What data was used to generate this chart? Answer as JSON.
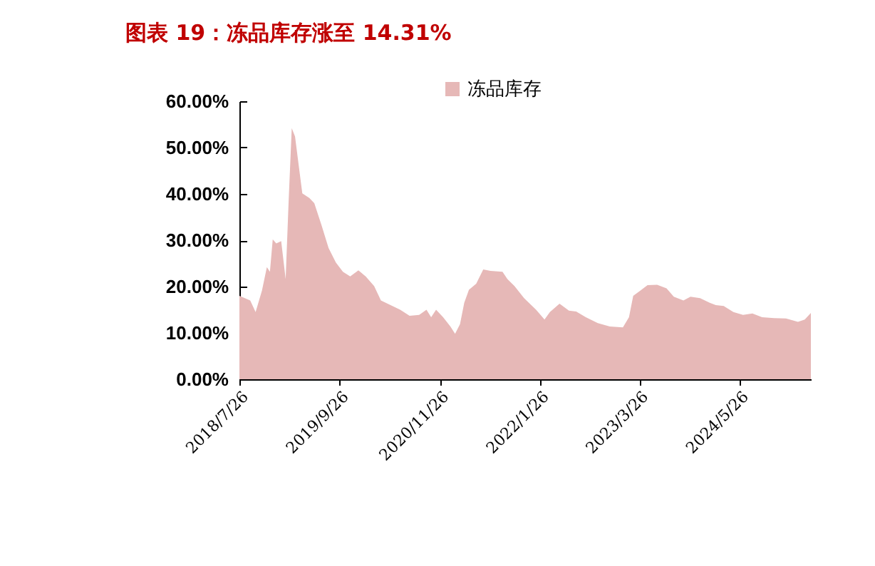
{
  "chart_data": {
    "type": "area",
    "title": "图表 19：冻品库存涨至 14.31%",
    "legend": "top",
    "x": [
      "2018-07-26",
      "2018-09-10",
      "2018-10-03",
      "2018-10-30",
      "2018-11-20",
      "2018-12-03",
      "2018-12-15",
      "2018-12-30",
      "2019-01-20",
      "2019-02-08",
      "2019-02-20",
      "2019-03-06",
      "2019-03-20",
      "2019-04-03",
      "2019-04-20",
      "2019-05-20",
      "2019-06-10",
      "2019-07-10",
      "2019-08-10",
      "2019-09-10",
      "2019-10-10",
      "2019-11-10",
      "2019-12-15",
      "2020-01-15",
      "2020-02-20",
      "2020-03-20",
      "2020-04-30",
      "2020-06-10",
      "2020-07-20",
      "2020-08-30",
      "2020-09-30",
      "2020-10-20",
      "2020-11-10",
      "2020-12-10",
      "2021-01-10",
      "2021-01-30",
      "2021-02-20",
      "2021-03-10",
      "2021-03-30",
      "2021-04-30",
      "2021-05-30",
      "2021-06-30",
      "2021-08-20",
      "2021-09-10",
      "2021-10-10",
      "2021-11-20",
      "2022-01-10",
      "2022-02-15",
      "2022-03-10",
      "2022-04-20",
      "2022-05-30",
      "2022-06-30",
      "2022-08-10",
      "2022-09-30",
      "2022-11-20",
      "2023-01-15",
      "2023-02-10",
      "2023-02-28",
      "2023-03-30",
      "2023-04-30",
      "2023-06-10",
      "2023-07-20",
      "2023-08-20",
      "2023-09-30",
      "2023-10-30",
      "2023-12-10",
      "2024-01-20",
      "2024-02-15",
      "2024-03-20",
      "2024-04-30",
      "2024-06-10",
      "2024-07-20",
      "2024-08-30",
      "2024-10-20",
      "2024-12-10",
      "2025-01-30",
      "2025-02-28",
      "2025-03-26"
    ],
    "series": [
      {
        "name": "冻品库存",
        "color": "#e6b8b7",
        "values": [
          18.0,
          17.0,
          14.5,
          19.1,
          24.2,
          23.2,
          30.2,
          29.3,
          29.8,
          21.6,
          37.5,
          54.2,
          52.4,
          46.8,
          40.1,
          39.1,
          38.0,
          33.4,
          28.3,
          25.2,
          23.2,
          22.2,
          23.5,
          22.2,
          20.1,
          17.0,
          16.0,
          15.0,
          13.7,
          13.9,
          15.0,
          13.4,
          15.0,
          13.4,
          11.4,
          9.8,
          11.9,
          16.5,
          19.3,
          20.6,
          23.7,
          23.4,
          23.2,
          21.6,
          20.1,
          17.5,
          15.0,
          12.9,
          14.5,
          16.3,
          14.8,
          14.6,
          13.4,
          12.1,
          11.4,
          11.2,
          13.4,
          18.0,
          19.1,
          20.3,
          20.4,
          19.6,
          17.8,
          17.0,
          17.8,
          17.5,
          16.5,
          16.0,
          15.8,
          14.5,
          13.9,
          14.2,
          13.4,
          13.2,
          13.1,
          12.4,
          12.9,
          14.31
        ]
      }
    ],
    "xlim": [
      "2018-07-26",
      "2025-03-26"
    ],
    "xticks": [
      {
        "value": "2018-07-26",
        "label": "2018/7/26"
      },
      {
        "value": "2019-09-26",
        "label": "2019/9/26"
      },
      {
        "value": "2020-11-26",
        "label": "2020/11/26"
      },
      {
        "value": "2022-01-26",
        "label": "2022/1/26"
      },
      {
        "value": "2023-03-26",
        "label": "2023/3/26"
      },
      {
        "value": "2024-05-26",
        "label": "2024/5/26"
      }
    ],
    "ylim": [
      0,
      60
    ],
    "yticks": [
      {
        "value": 0,
        "label": "0.00%"
      },
      {
        "value": 10,
        "label": "10.00%"
      },
      {
        "value": 20,
        "label": "20.00%"
      },
      {
        "value": 30,
        "label": "30.00%"
      },
      {
        "value": 40,
        "label": "40.00%"
      },
      {
        "value": 50,
        "label": "50.00%"
      },
      {
        "value": 60,
        "label": "60.00%"
      }
    ]
  }
}
